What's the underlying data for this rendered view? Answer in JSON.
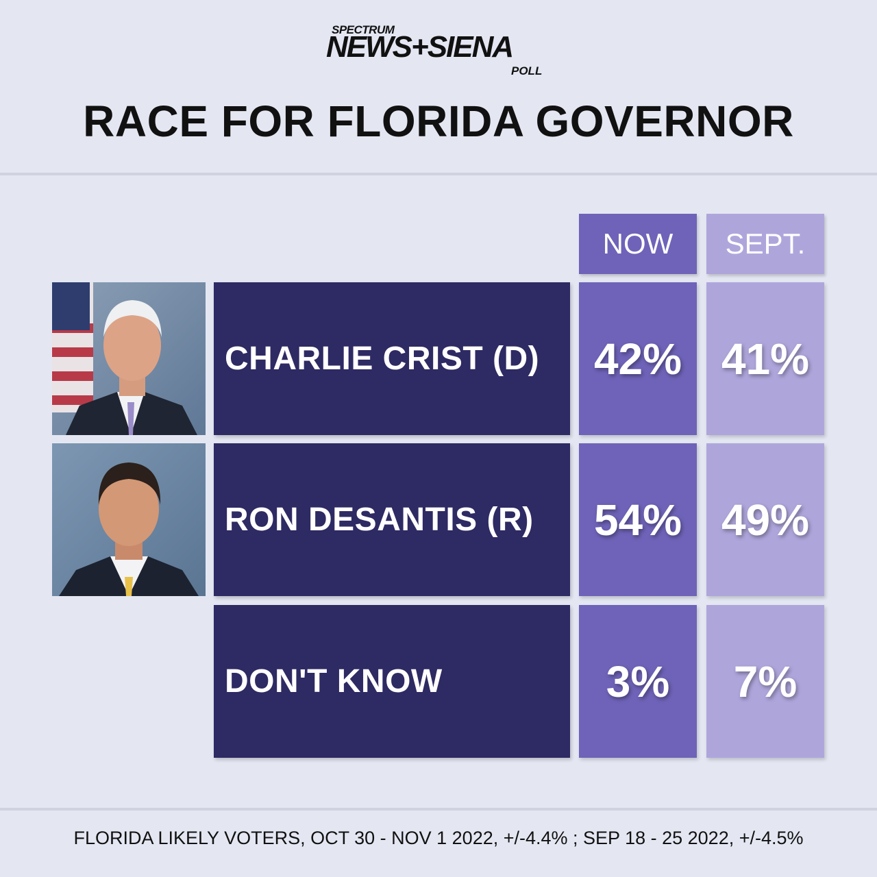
{
  "logo": {
    "top": "SPECTRUM",
    "main": "NEWS+SIENA",
    "bottom": "POLL"
  },
  "title": "RACE FOR FLORIDA GOVERNOR",
  "columns": [
    "NOW",
    "SEPT."
  ],
  "colors": {
    "background": "#e4e7f2",
    "label_fill": "#2e2a63",
    "now_fill": "#6e63b8",
    "sept_fill": "#aea6db"
  },
  "chart_data": {
    "type": "table",
    "title": "RACE FOR FLORIDA GOVERNOR",
    "columns": [
      "NOW",
      "SEPT."
    ],
    "rows": [
      {
        "label": "CHARLIE CRIST (D)",
        "now": "42%",
        "sept": "41%"
      },
      {
        "label": "RON DESANTIS (R)",
        "now": "54%",
        "sept": "49%"
      },
      {
        "label": "DON'T KNOW",
        "now": "3%",
        "sept": "7%"
      }
    ],
    "series": [
      {
        "name": "NOW",
        "values": [
          42,
          54,
          3
        ]
      },
      {
        "name": "SEPT.",
        "values": [
          41,
          49,
          7
        ]
      }
    ],
    "categories": [
      "CHARLIE CRIST (D)",
      "RON DESANTIS (R)",
      "DON'T KNOW"
    ]
  },
  "footer": "FLORIDA LIKELY VOTERS, OCT 30 - NOV 1 2022, +/-4.4% ; SEP 18 - 25 2022, +/-4.5%"
}
